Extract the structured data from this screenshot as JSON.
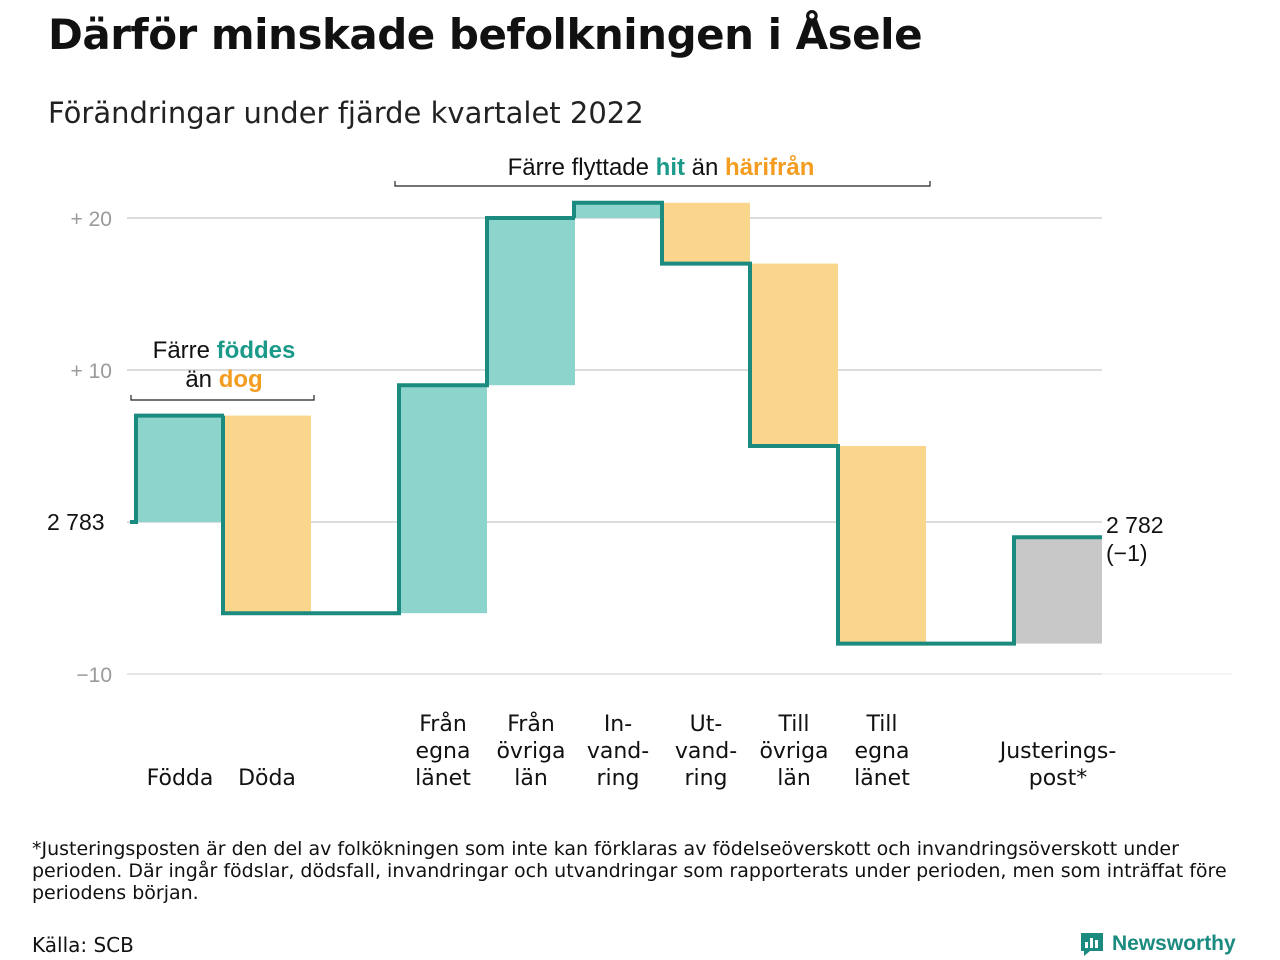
{
  "title": "Därför minskade befolkningen i Åsele",
  "subtitle": "Förändringar under fjärde kvartalet 2022",
  "chart_data": {
    "type": "waterfall",
    "start_value": 2783,
    "start_label": "2 783",
    "end_value": 2782,
    "end_label": "2 782",
    "end_change_label": "(−1)",
    "y_axis": {
      "min": -10,
      "max": 20,
      "ticks": [
        {
          "value": 20,
          "label": "+ 20"
        },
        {
          "value": 10,
          "label": "+ 10"
        },
        {
          "value": -10,
          "label": "−10"
        }
      ],
      "grid": true
    },
    "steps": [
      {
        "label_lines": [
          "Födda"
        ],
        "value": 7,
        "kind": "positive"
      },
      {
        "label_lines": [
          "Döda"
        ],
        "value": -13,
        "kind": "negative"
      },
      {
        "label_lines": [
          "Från",
          "egna",
          "länet"
        ],
        "value": 15,
        "kind": "positive"
      },
      {
        "label_lines": [
          "Från",
          "övriga",
          "län"
        ],
        "value": 11,
        "kind": "positive"
      },
      {
        "label_lines": [
          "In-",
          "vand-",
          "ring"
        ],
        "value": 1,
        "kind": "positive"
      },
      {
        "label_lines": [
          "Ut-",
          "vand-",
          "ring"
        ],
        "value": -4,
        "kind": "negative"
      },
      {
        "label_lines": [
          "Till",
          "övriga",
          "län"
        ],
        "value": -12,
        "kind": "negative"
      },
      {
        "label_lines": [
          "Till",
          "egna",
          "länet"
        ],
        "value": -13,
        "kind": "negative"
      },
      {
        "label_lines": [
          "Justerings-",
          "post*"
        ],
        "value": 7,
        "kind": "adjustment"
      }
    ],
    "annotations": [
      {
        "prefix": "Färre ",
        "highlight1": "föddes",
        "middle": "än ",
        "highlight2": "dog"
      },
      {
        "prefix": "Färre flyttade ",
        "highlight1": "hit",
        "middle": " än ",
        "highlight2": "härifrån"
      }
    ],
    "colors": {
      "positive_fill": "#8dd4cc",
      "negative_fill": "#fad58c",
      "adjustment_fill": "#c8c8c8",
      "line": "#1b8a7f",
      "highlight_positive": "#1b9a8a",
      "highlight_negative": "#f39c1f",
      "grid": "#dddddd",
      "axis_text": "#9a9a9a"
    }
  },
  "footnote": "*Justeringsposten är den del av folkökningen som inte kan förklaras av födelseöverskott och invandringsöverskott under perioden. Där ingår födslar, dödsfall, invandringar och utvandringar som rapporterats under perioden, men som inträffat före periodens början.",
  "source": "Källa: SCB",
  "brand": {
    "name": "Newsworthy",
    "icon": "newsworthy-logo-icon"
  }
}
